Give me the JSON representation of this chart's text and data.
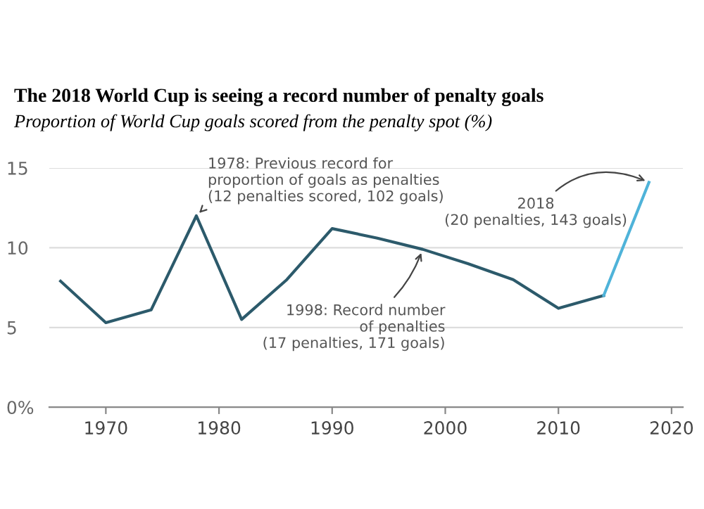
{
  "chart_data": {
    "type": "line",
    "title": "The 2018 World Cup is seeing a record number of penalty goals",
    "subtitle": "Proportion of World Cup goals scored from the penalty spot (%)",
    "x": [
      1966,
      1970,
      1974,
      1978,
      1982,
      1986,
      1990,
      1994,
      1998,
      2002,
      2006,
      2010,
      2014,
      2018
    ],
    "series": [
      {
        "color": "#2c5a6b",
        "values": [
          7.9,
          5.3,
          6.1,
          12.0,
          5.5,
          8.0,
          11.2,
          10.6,
          9.9,
          9.0,
          8.0,
          6.2,
          7.0,
          null
        ]
      },
      {
        "color": "#4fb3d9",
        "values": [
          null,
          null,
          null,
          null,
          null,
          null,
          null,
          null,
          null,
          null,
          null,
          null,
          7.0,
          14.1
        ]
      }
    ],
    "xlim": [
      1965,
      2021
    ],
    "xticks": [
      1970,
      1980,
      1990,
      2000,
      2010,
      2020
    ],
    "ylim": [
      0,
      15
    ],
    "yticks": [
      {
        "value": 0,
        "label": "0%"
      },
      5,
      10,
      15
    ],
    "grid": "y",
    "marker": "none",
    "line_style": "solid",
    "legend": false,
    "annotations": [
      {
        "text": "1978: Previous record for\nproportion of goals as penalties\n(12 penalties scored, 102 goals)",
        "x": 1978,
        "y": 12.0
      },
      {
        "text": "1998: Record number\nof penalties\n(17 penalties, 171 goals)",
        "x": 1998,
        "y": 9.9
      },
      {
        "text": "2018\n(20 penalties, 143 goals)",
        "x": 2018,
        "y": 14.1
      }
    ]
  }
}
